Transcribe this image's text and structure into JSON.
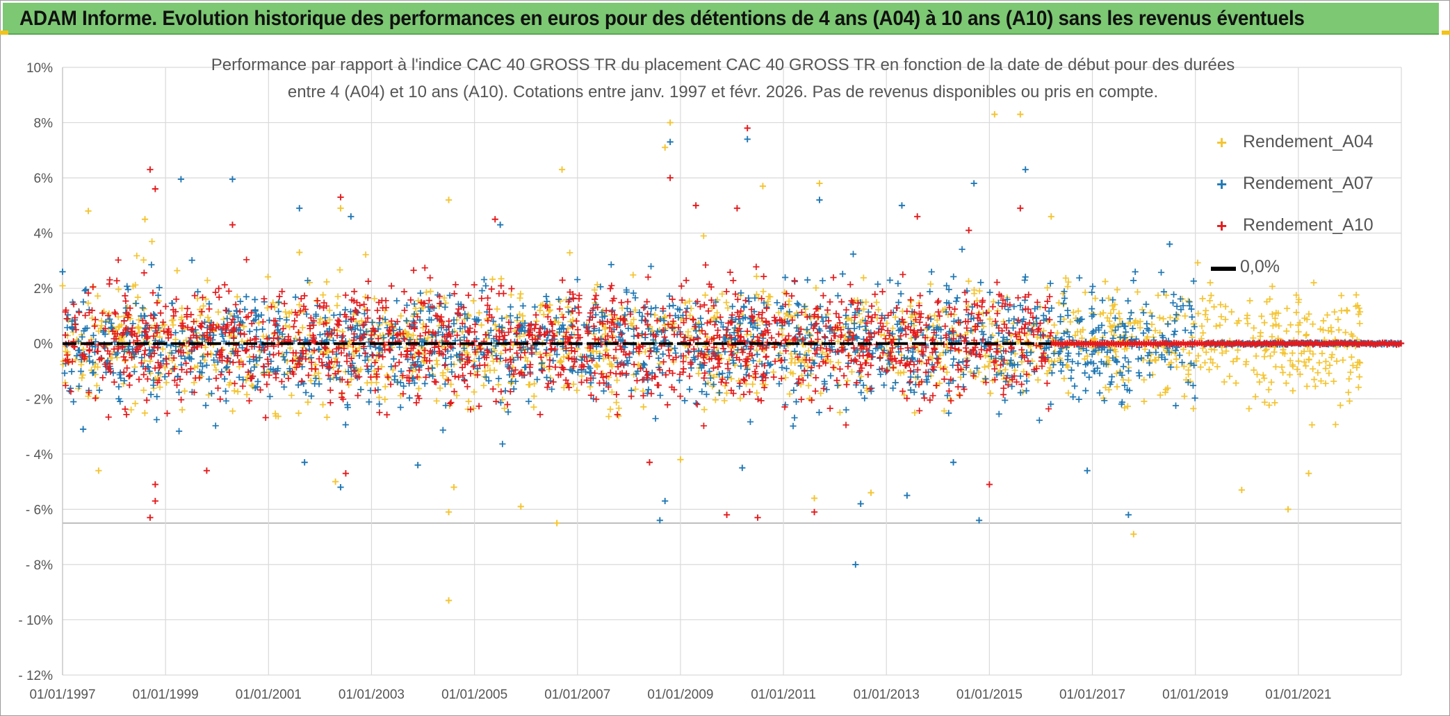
{
  "header": {
    "title": "ADAM Informe. Evolution historique des performances en euros pour des détentions de 4 ans (A04) à 10 ans (A10) sans les revenus éventuels"
  },
  "chart_data": {
    "type": "scatter",
    "title_line1": "Performance par rapport à l'indice CAC 40 GROSS TR  du placement CAC 40 GROSS TR en fonction de la date de début pour des durées",
    "title_line2": "entre 4 (A04) et 10 ans (A10). Cotations entre janv. 1997 et févr. 2026. Pas de revenus disponibles ou pris en compte.",
    "x_range": [
      1997.0,
      2023.0
    ],
    "x_ticks": [
      1997,
      1999,
      2001,
      2003,
      2005,
      2007,
      2009,
      2011,
      2013,
      2015,
      2017,
      2019,
      2021
    ],
    "x_tick_labels": [
      "01/01/1997",
      "01/01/1999",
      "01/01/2001",
      "01/01/2003",
      "01/01/2005",
      "01/01/2007",
      "01/01/2009",
      "01/01/2011",
      "01/01/2013",
      "01/01/2015",
      "01/01/2017",
      "01/01/2019",
      "01/01/2021"
    ],
    "y_range": [
      -12,
      10
    ],
    "y_ticks": [
      10,
      8,
      6,
      4,
      2,
      0,
      -2,
      -4,
      -6,
      -8,
      -10,
      -12
    ],
    "y_tick_labels": [
      "10%",
      "8%",
      "6%",
      "4%",
      "2%",
      "0%",
      "- 2%",
      "- 4%",
      "- 6%",
      "- 8%",
      "- 10%",
      "- 12%"
    ],
    "reference_line": {
      "name": "0,0%",
      "value": 0,
      "color": "#000000"
    },
    "series": [
      {
        "name": "Rendement_A04",
        "color": "#f4c430",
        "marker": "+",
        "x_start": 1997.0,
        "x_end": 2022.2,
        "spread": 1.3,
        "flat_after": null,
        "seed": 11,
        "outliers": [
          [
            1997.5,
            4.8
          ],
          [
            1998.6,
            4.5
          ],
          [
            2001.6,
            3.3
          ],
          [
            2002.4,
            4.9
          ],
          [
            2004.5,
            5.2
          ],
          [
            2004.5,
            -9.3
          ],
          [
            2004.5,
            -6.1
          ],
          [
            2006.7,
            6.3
          ],
          [
            2006.6,
            -6.5
          ],
          [
            2008.8,
            8.0
          ],
          [
            2008.7,
            7.1
          ],
          [
            2010.6,
            5.7
          ],
          [
            2011.7,
            5.8
          ],
          [
            2011.6,
            -5.6
          ],
          [
            2015.1,
            8.3
          ],
          [
            2015.6,
            8.3
          ],
          [
            2016.2,
            4.6
          ],
          [
            2017.8,
            -6.9
          ],
          [
            2019.9,
            -5.3
          ],
          [
            2020.8,
            -6.0
          ],
          [
            2021.2,
            -4.7
          ],
          [
            2005.9,
            -5.9
          ],
          [
            2002.3,
            -5.0
          ],
          [
            2004.6,
            -5.2
          ],
          [
            1997.7,
            -4.6
          ],
          [
            2009.0,
            -4.2
          ],
          [
            2012.7,
            -5.4
          ]
        ]
      },
      {
        "name": "Rendement_A07",
        "color": "#1f77b4",
        "marker": "+",
        "x_start": 1997.0,
        "x_end": 2019.0,
        "spread": 1.25,
        "flat_after": 2019.2,
        "seed": 23,
        "outliers": [
          [
            1997.0,
            2.6
          ],
          [
            1997.4,
            -3.1
          ],
          [
            1999.3,
            5.95
          ],
          [
            2000.3,
            5.95
          ],
          [
            2001.6,
            4.9
          ],
          [
            2001.7,
            -4.3
          ],
          [
            2002.6,
            4.6
          ],
          [
            2002.4,
            -5.2
          ],
          [
            2003.9,
            -4.4
          ],
          [
            2008.8,
            7.3
          ],
          [
            2008.6,
            -6.4
          ],
          [
            2008.7,
            -5.7
          ],
          [
            2010.3,
            7.4
          ],
          [
            2011.7,
            5.2
          ],
          [
            2013.3,
            5.0
          ],
          [
            2012.4,
            -8.0
          ],
          [
            2012.5,
            -5.8
          ],
          [
            2013.4,
            -5.5
          ],
          [
            2014.7,
            5.8
          ],
          [
            2015.7,
            6.3
          ],
          [
            2014.8,
            -6.4
          ],
          [
            2017.7,
            -6.2
          ],
          [
            2018.5,
            3.6
          ],
          [
            2016.9,
            -4.6
          ],
          [
            2014.3,
            -4.3
          ],
          [
            2010.2,
            -4.5
          ],
          [
            2005.5,
            4.3
          ]
        ]
      },
      {
        "name": "Rendement_A10",
        "color": "#e41a1c",
        "marker": "+",
        "x_start": 1997.0,
        "x_end": 2016.2,
        "spread": 1.25,
        "flat_after": 2016.2,
        "seed": 37,
        "outliers": [
          [
            1998.7,
            6.3
          ],
          [
            1998.8,
            5.6
          ],
          [
            1998.7,
            -6.3
          ],
          [
            1998.8,
            -5.7
          ],
          [
            1998.8,
            -5.1
          ],
          [
            2000.3,
            4.3
          ],
          [
            2002.4,
            5.3
          ],
          [
            2002.5,
            -4.7
          ],
          [
            2005.4,
            4.5
          ],
          [
            2008.8,
            6.0
          ],
          [
            2009.3,
            5.0
          ],
          [
            2010.3,
            7.8
          ],
          [
            2010.1,
            4.9
          ],
          [
            2009.9,
            -6.2
          ],
          [
            2010.5,
            -6.3
          ],
          [
            2011.6,
            -6.1
          ],
          [
            2013.6,
            4.6
          ],
          [
            2014.6,
            4.1
          ],
          [
            2015.6,
            4.9
          ],
          [
            2015.0,
            -5.1
          ],
          [
            1999.8,
            -4.6
          ],
          [
            2008.4,
            -4.3
          ]
        ]
      }
    ],
    "legend": {
      "position": "top-right",
      "entries": [
        "Rendement_A04",
        "Rendement_A07",
        "Rendement_A10",
        "0,0%"
      ]
    }
  }
}
